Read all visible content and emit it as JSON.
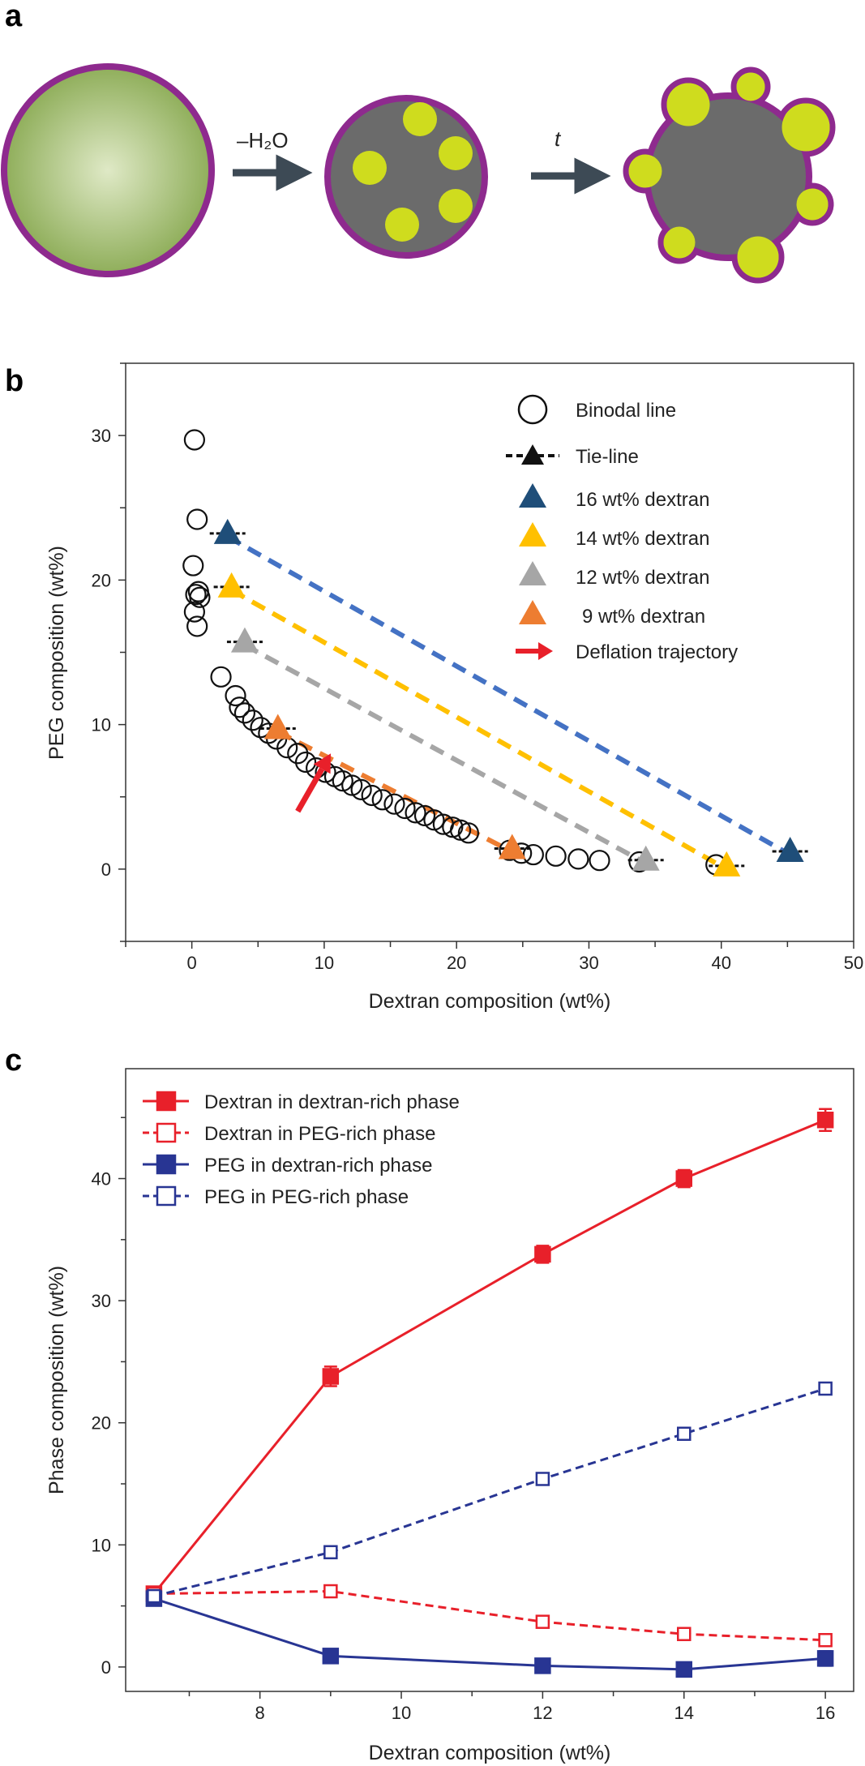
{
  "figure": {
    "panels": [
      "a",
      "b",
      "c"
    ]
  },
  "schematic": {
    "arrow1_label": "–H₂O",
    "arrow2_label": "t",
    "colors": {
      "membrane": "#8e2a8e",
      "droplet_light": "#dfe9c6",
      "droplet_dark": "#8fae5a",
      "interior": "#6b6b6b",
      "inclusion": "#cfdc1e",
      "arrow": "#3d4a55"
    }
  },
  "chart_data": [
    {
      "panel": "b",
      "type": "scatter",
      "xlabel": "Dextran composition (wt%)",
      "ylabel": "PEG composition (wt%)",
      "xlim": [
        -5,
        50
      ],
      "ylim": [
        -5,
        35
      ],
      "xticks": [
        0,
        10,
        20,
        30,
        40,
        50
      ],
      "yticks": [
        0,
        10,
        20,
        30
      ],
      "binodal": {
        "name": "Binodal line",
        "x": [
          0.2,
          0.4,
          0.1,
          0.3,
          0.5,
          0.6,
          0.2,
          0.4,
          2.2,
          3.3,
          3.6,
          4.0,
          4.6,
          5.2,
          5.8,
          6.4,
          7.2,
          8.0,
          8.6,
          9.4,
          10.1,
          10.8,
          11.4,
          12.1,
          12.8,
          13.6,
          14.4,
          15.3,
          16.1,
          16.9,
          17.6,
          18.3,
          19.0,
          19.7,
          20.3,
          20.9,
          24.0,
          24.9,
          25.8,
          27.5,
          29.2,
          30.8,
          33.8,
          39.6
        ],
        "y": [
          29.7,
          24.2,
          21.0,
          19.0,
          19.2,
          18.8,
          17.8,
          16.8,
          13.3,
          12.0,
          11.2,
          10.8,
          10.3,
          9.8,
          9.4,
          9.0,
          8.4,
          8.0,
          7.4,
          7.0,
          6.7,
          6.4,
          6.1,
          5.8,
          5.5,
          5.1,
          4.8,
          4.5,
          4.2,
          3.9,
          3.7,
          3.4,
          3.1,
          2.9,
          2.7,
          2.5,
          1.3,
          1.1,
          1.0,
          0.9,
          0.7,
          0.6,
          0.5,
          0.3
        ]
      },
      "tie_line_legend": "Tie-line",
      "trajectory_legend": "Deflation trajectory",
      "trajectory": {
        "x": [
          8.0,
          10.5
        ],
        "y": [
          4.0,
          8.0
        ]
      },
      "tie_lines": [
        {
          "name": "16 wt% dextran",
          "color": "#1f4e79",
          "line_color": "#4472c4",
          "x": [
            2.7,
            45.2
          ],
          "y": [
            23.0,
            1.0
          ]
        },
        {
          "name": "14 wt% dextran",
          "color": "#ffc000",
          "line_color": "#ffc000",
          "x": [
            3.0,
            40.4
          ],
          "y": [
            19.3,
            0.0
          ]
        },
        {
          "name": "12 wt% dextran",
          "color": "#a6a6a6",
          "line_color": "#a6a6a6",
          "x": [
            4.0,
            34.3
          ],
          "y": [
            15.5,
            0.4
          ]
        },
        {
          "name": "9 wt% dextran",
          "color": "#ed7d31",
          "line_color": "#ed7d31",
          "x": [
            6.5,
            24.2
          ],
          "y": [
            9.5,
            1.2
          ]
        }
      ],
      "trajectory_color": "#e8202a"
    },
    {
      "panel": "c",
      "type": "line",
      "xlabel": "Dextran composition (wt%)",
      "ylabel": "Phase composition (wt%)",
      "xlim": [
        6.1,
        16.4
      ],
      "ylim": [
        -2,
        49
      ],
      "xticks": [
        8,
        10,
        12,
        14,
        16
      ],
      "yticks": [
        0,
        10,
        20,
        30,
        40
      ],
      "x": [
        6.5,
        9,
        12,
        14,
        16
      ],
      "series": [
        {
          "name": "Dextran in dextran-rich phase",
          "color": "#e8202a",
          "filled": true,
          "dashed": false,
          "values": [
            6.0,
            23.8,
            33.8,
            40.0,
            44.8
          ],
          "err": [
            0.2,
            0.8,
            0.7,
            0.7,
            0.9
          ]
        },
        {
          "name": "Dextran in PEG-rich phase",
          "color": "#e8202a",
          "filled": false,
          "dashed": true,
          "values": [
            6.0,
            6.2,
            3.7,
            2.7,
            2.2
          ],
          "err": [
            0,
            0,
            0,
            0,
            0
          ]
        },
        {
          "name": "PEG in dextran-rich phase",
          "color": "#283593",
          "filled": true,
          "dashed": false,
          "values": [
            5.6,
            0.9,
            0.1,
            -0.2,
            0.7
          ],
          "err": [
            0,
            0.2,
            0.2,
            0.2,
            0.6
          ]
        },
        {
          "name": "PEG in PEG-rich phase",
          "color": "#283593",
          "filled": false,
          "dashed": true,
          "values": [
            5.8,
            9.4,
            15.4,
            19.1,
            22.8
          ],
          "err": [
            0,
            0,
            0,
            0,
            0
          ]
        }
      ]
    }
  ]
}
